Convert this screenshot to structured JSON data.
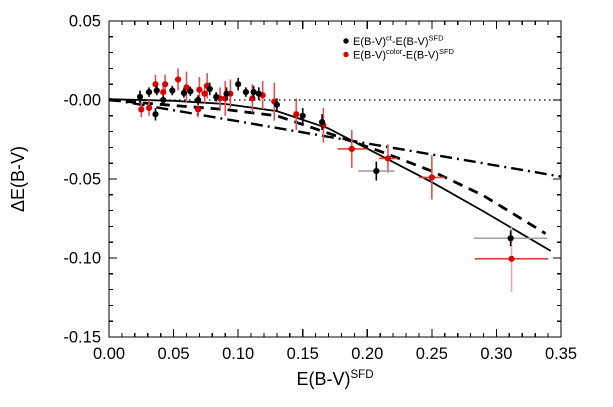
{
  "chart_data": {
    "type": "scatter",
    "title": "",
    "xlabel": "E(B-V)^{SFD}",
    "ylabel": "ΔE(B-V)",
    "xlim": [
      0,
      0.35
    ],
    "ylim": [
      -0.15,
      0.05
    ],
    "xticks": [
      0.0,
      0.05,
      0.1,
      0.15,
      0.2,
      0.25,
      0.3,
      0.35
    ],
    "xtick_labels": [
      "0.00",
      "0.05",
      "0.10",
      "0.15",
      "0.20",
      "0.25",
      "0.30",
      "0.35"
    ],
    "yticks": [
      0.05,
      0.0,
      -0.05,
      -0.1,
      -0.15
    ],
    "ytick_labels": [
      "0.05",
      "-0.00",
      "-0.05",
      "-0.10",
      "-0.15"
    ],
    "minor_tick_step": 0.01,
    "grid": false,
    "legend": {
      "position": "top-right-inside",
      "entries": [
        {
          "label": "E(B-V)^{ct}-E(B-V)^{SFD}",
          "color": "#000000",
          "marker": "circle"
        },
        {
          "label": "E(B-V)^{color}-E(B-V)^{SFD}",
          "color": "#dd0000",
          "marker": "circle"
        }
      ]
    },
    "colors": {
      "black_series": "#000000",
      "black_errbar": "#000000",
      "black_herrbar": "#a0a0a0",
      "red_series": "#dd0000",
      "red_errbar": "#e85050",
      "red_herrbar": "#e04040",
      "red_tall_errbar": "#f2a6a6",
      "axis": "#000000"
    },
    "series": [
      {
        "name": "E(B-V)^ct - E(B-V)^SFD",
        "color": "#000000",
        "points": [
          {
            "x": 0.024,
            "y": 0.002,
            "ey": 0.004
          },
          {
            "x": 0.031,
            "y": 0.005,
            "ey": 0.003
          },
          {
            "x": 0.036,
            "y": -0.009,
            "ey": 0.004
          },
          {
            "x": 0.037,
            "y": 0.006,
            "ey": 0.003
          },
          {
            "x": 0.042,
            "y": 0.0,
            "ey": 0.003
          },
          {
            "x": 0.049,
            "y": 0.006,
            "ey": 0.003
          },
          {
            "x": 0.058,
            "y": 0.0045,
            "ey": 0.003
          },
          {
            "x": 0.063,
            "y": 0.0055,
            "ey": 0.003
          },
          {
            "x": 0.069,
            "y": 0.0,
            "ey": 0.003
          },
          {
            "x": 0.078,
            "y": 0.007,
            "ey": 0.004
          },
          {
            "x": 0.083,
            "y": 0.002,
            "ey": 0.003
          },
          {
            "x": 0.091,
            "y": 0.004,
            "ey": 0.004
          },
          {
            "x": 0.1,
            "y": 0.01,
            "ey": 0.004
          },
          {
            "x": 0.106,
            "y": 0.005,
            "ey": 0.003
          },
          {
            "x": 0.112,
            "y": 0.005,
            "ey": 0.004
          },
          {
            "x": 0.116,
            "y": 0.004,
            "ey": 0.004
          },
          {
            "x": 0.13,
            "y": -0.003,
            "ey": 0.004
          },
          {
            "x": 0.15,
            "y": -0.01,
            "ey": 0.005
          },
          {
            "x": 0.165,
            "y": -0.014,
            "ey": 0.005
          },
          {
            "x": 0.207,
            "y": -0.045,
            "ey": 0.006,
            "ex": 0.014
          },
          {
            "x": 0.311,
            "y": -0.0875,
            "ey": 0.005,
            "ex": 0.0285
          }
        ]
      },
      {
        "name": "E(B-V)^color - E(B-V)^SFD",
        "color": "#dd0000",
        "points": [
          {
            "x": 0.025,
            "y": -0.006,
            "ey": 0.005
          },
          {
            "x": 0.031,
            "y": -0.005,
            "ey": 0.005
          },
          {
            "x": 0.036,
            "y": 0.01,
            "ey": 0.006
          },
          {
            "x": 0.042,
            "y": 0.005,
            "ey": 0.005
          },
          {
            "x": 0.0435,
            "y": 0.01,
            "ey": 0.006
          },
          {
            "x": 0.0535,
            "y": 0.013,
            "ey": 0.007
          },
          {
            "x": 0.06,
            "y": 0.008,
            "ey": 0.01
          },
          {
            "x": 0.069,
            "y": -0.006,
            "ey": 0.005
          },
          {
            "x": 0.07,
            "y": 0.0065,
            "ey": 0.008
          },
          {
            "x": 0.074,
            "y": 0.004,
            "ey": 0.006
          },
          {
            "x": 0.076,
            "y": 0.009,
            "ey": 0.008
          },
          {
            "x": 0.086,
            "y": 0.001,
            "ey": 0.007
          },
          {
            "x": 0.09,
            "y": 0.001,
            "ey": 0.011
          },
          {
            "x": 0.094,
            "y": 0.004,
            "ey": 0.009
          },
          {
            "x": 0.111,
            "y": 0.001,
            "ey": 0.009
          },
          {
            "x": 0.119,
            "y": 0.003,
            "ey": 0.009
          },
          {
            "x": 0.128,
            "y": -0.001,
            "ey": 0.012
          },
          {
            "x": 0.145,
            "y": -0.009,
            "ey": 0.01
          },
          {
            "x": 0.166,
            "y": -0.016,
            "ey": 0.011
          },
          {
            "x": 0.188,
            "y": -0.031,
            "ey": 0.012,
            "ex": 0.011
          },
          {
            "x": 0.216,
            "y": -0.037,
            "ey": 0.009,
            "ex": 0.007
          },
          {
            "x": 0.25,
            "y": -0.049,
            "ey": 0.014,
            "ex": 0.01
          },
          {
            "x": 0.3117,
            "y": -0.1005,
            "ey": 0.021,
            "ex": 0.0285
          }
        ]
      }
    ],
    "lines": [
      {
        "name": "zero-line",
        "style": "dotted",
        "color": "#000000",
        "width": 1.2,
        "points": [
          [
            0,
            0
          ],
          [
            0.35,
            0
          ]
        ]
      },
      {
        "name": "dashdot-model-line",
        "style": "dashdot",
        "color": "#000000",
        "width": 2.4,
        "points": [
          [
            0,
            0.0005
          ],
          [
            0.35,
            -0.0485
          ]
        ]
      },
      {
        "name": "dashed-fit-line",
        "style": "dashed",
        "color": "#000000",
        "width": 2.8,
        "points": [
          [
            0,
            0.0
          ],
          [
            0.05,
            -0.0035
          ],
          [
            0.09,
            -0.006
          ],
          [
            0.13,
            -0.01
          ],
          [
            0.17,
            -0.021
          ],
          [
            0.21,
            -0.0325
          ],
          [
            0.25,
            -0.045
          ],
          [
            0.29,
            -0.0605
          ],
          [
            0.338,
            -0.0845
          ]
        ]
      },
      {
        "name": "solid-fit-line",
        "style": "solid",
        "color": "#000000",
        "width": 1.8,
        "points": [
          [
            0,
            0.0005
          ],
          [
            0.05,
            -0.0005
          ],
          [
            0.09,
            -0.0025
          ],
          [
            0.13,
            -0.007
          ],
          [
            0.17,
            -0.018
          ],
          [
            0.21,
            -0.035
          ],
          [
            0.25,
            -0.052
          ],
          [
            0.29,
            -0.0705
          ],
          [
            0.342,
            -0.0955
          ]
        ]
      }
    ]
  }
}
